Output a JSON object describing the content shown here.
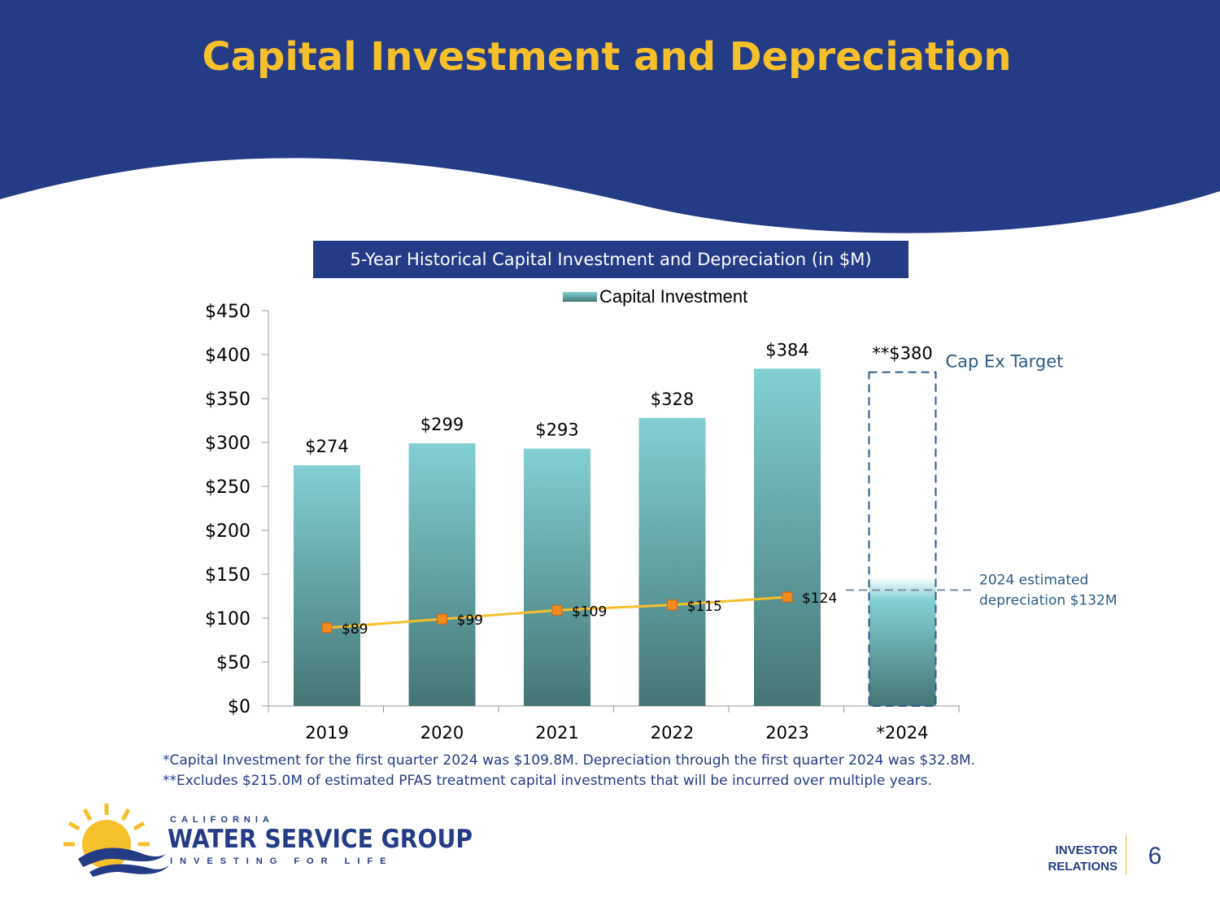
{
  "slide": {
    "title": "Capital Investment and Depreciation",
    "chart_header": "5-Year Historical Capital Investment and Depreciation (in $M)",
    "page_number": "6",
    "footer_line1": "INVESTOR",
    "footer_line2": "RELATIONS"
  },
  "logo": {
    "top_text": "CALIFORNIA",
    "main_text": "WATER SERVICE GROUP",
    "tagline": "INVESTING FOR LIFE"
  },
  "footnotes": [
    "*Capital Investment for the first quarter 2024 was $109.8M. Depreciation through the first quarter 2024 was $32.8M.",
    "**Excludes $215.0M of estimated PFAS treatment capital investments that will be incurred over multiple years."
  ],
  "colors": {
    "navy": "#243c86",
    "gold": "#f6bf2c",
    "bar_top": "#82d0d3",
    "bar_bottom": "#457574",
    "marker": "#f28a1e",
    "line": "#f6bf2c",
    "target_text": "#2d5b8a"
  },
  "chart_data": {
    "type": "bar",
    "categories": [
      "2019",
      "2020",
      "2021",
      "2022",
      "2023",
      "*2024"
    ],
    "series": [
      {
        "name": "Capital Investment",
        "type": "bar",
        "values": [
          274,
          299,
          293,
          328,
          384,
          null
        ],
        "labels": [
          "$274",
          "$299",
          "$293",
          "$328",
          "$384",
          ""
        ]
      },
      {
        "name": "",
        "type": "line",
        "values": [
          89,
          99,
          109,
          115,
          124,
          null
        ],
        "labels": [
          "$89",
          "$99",
          "$109",
          "$115",
          "$124",
          ""
        ]
      }
    ],
    "target": {
      "category": "*2024",
      "value": 380,
      "label": "**$380",
      "annotation": "Cap Ex Target"
    },
    "estimated_depreciation": {
      "category": "*2024",
      "value": 132,
      "annotation_line1": "2024 estimated",
      "annotation_line2": "depreciation $132M"
    },
    "y_ticks": [
      "$0",
      "$50",
      "$100",
      "$150",
      "$200",
      "$250",
      "$300",
      "$350",
      "$400",
      "$450"
    ],
    "ylim": [
      0,
      450
    ],
    "legend_position": "top",
    "grid": false
  }
}
